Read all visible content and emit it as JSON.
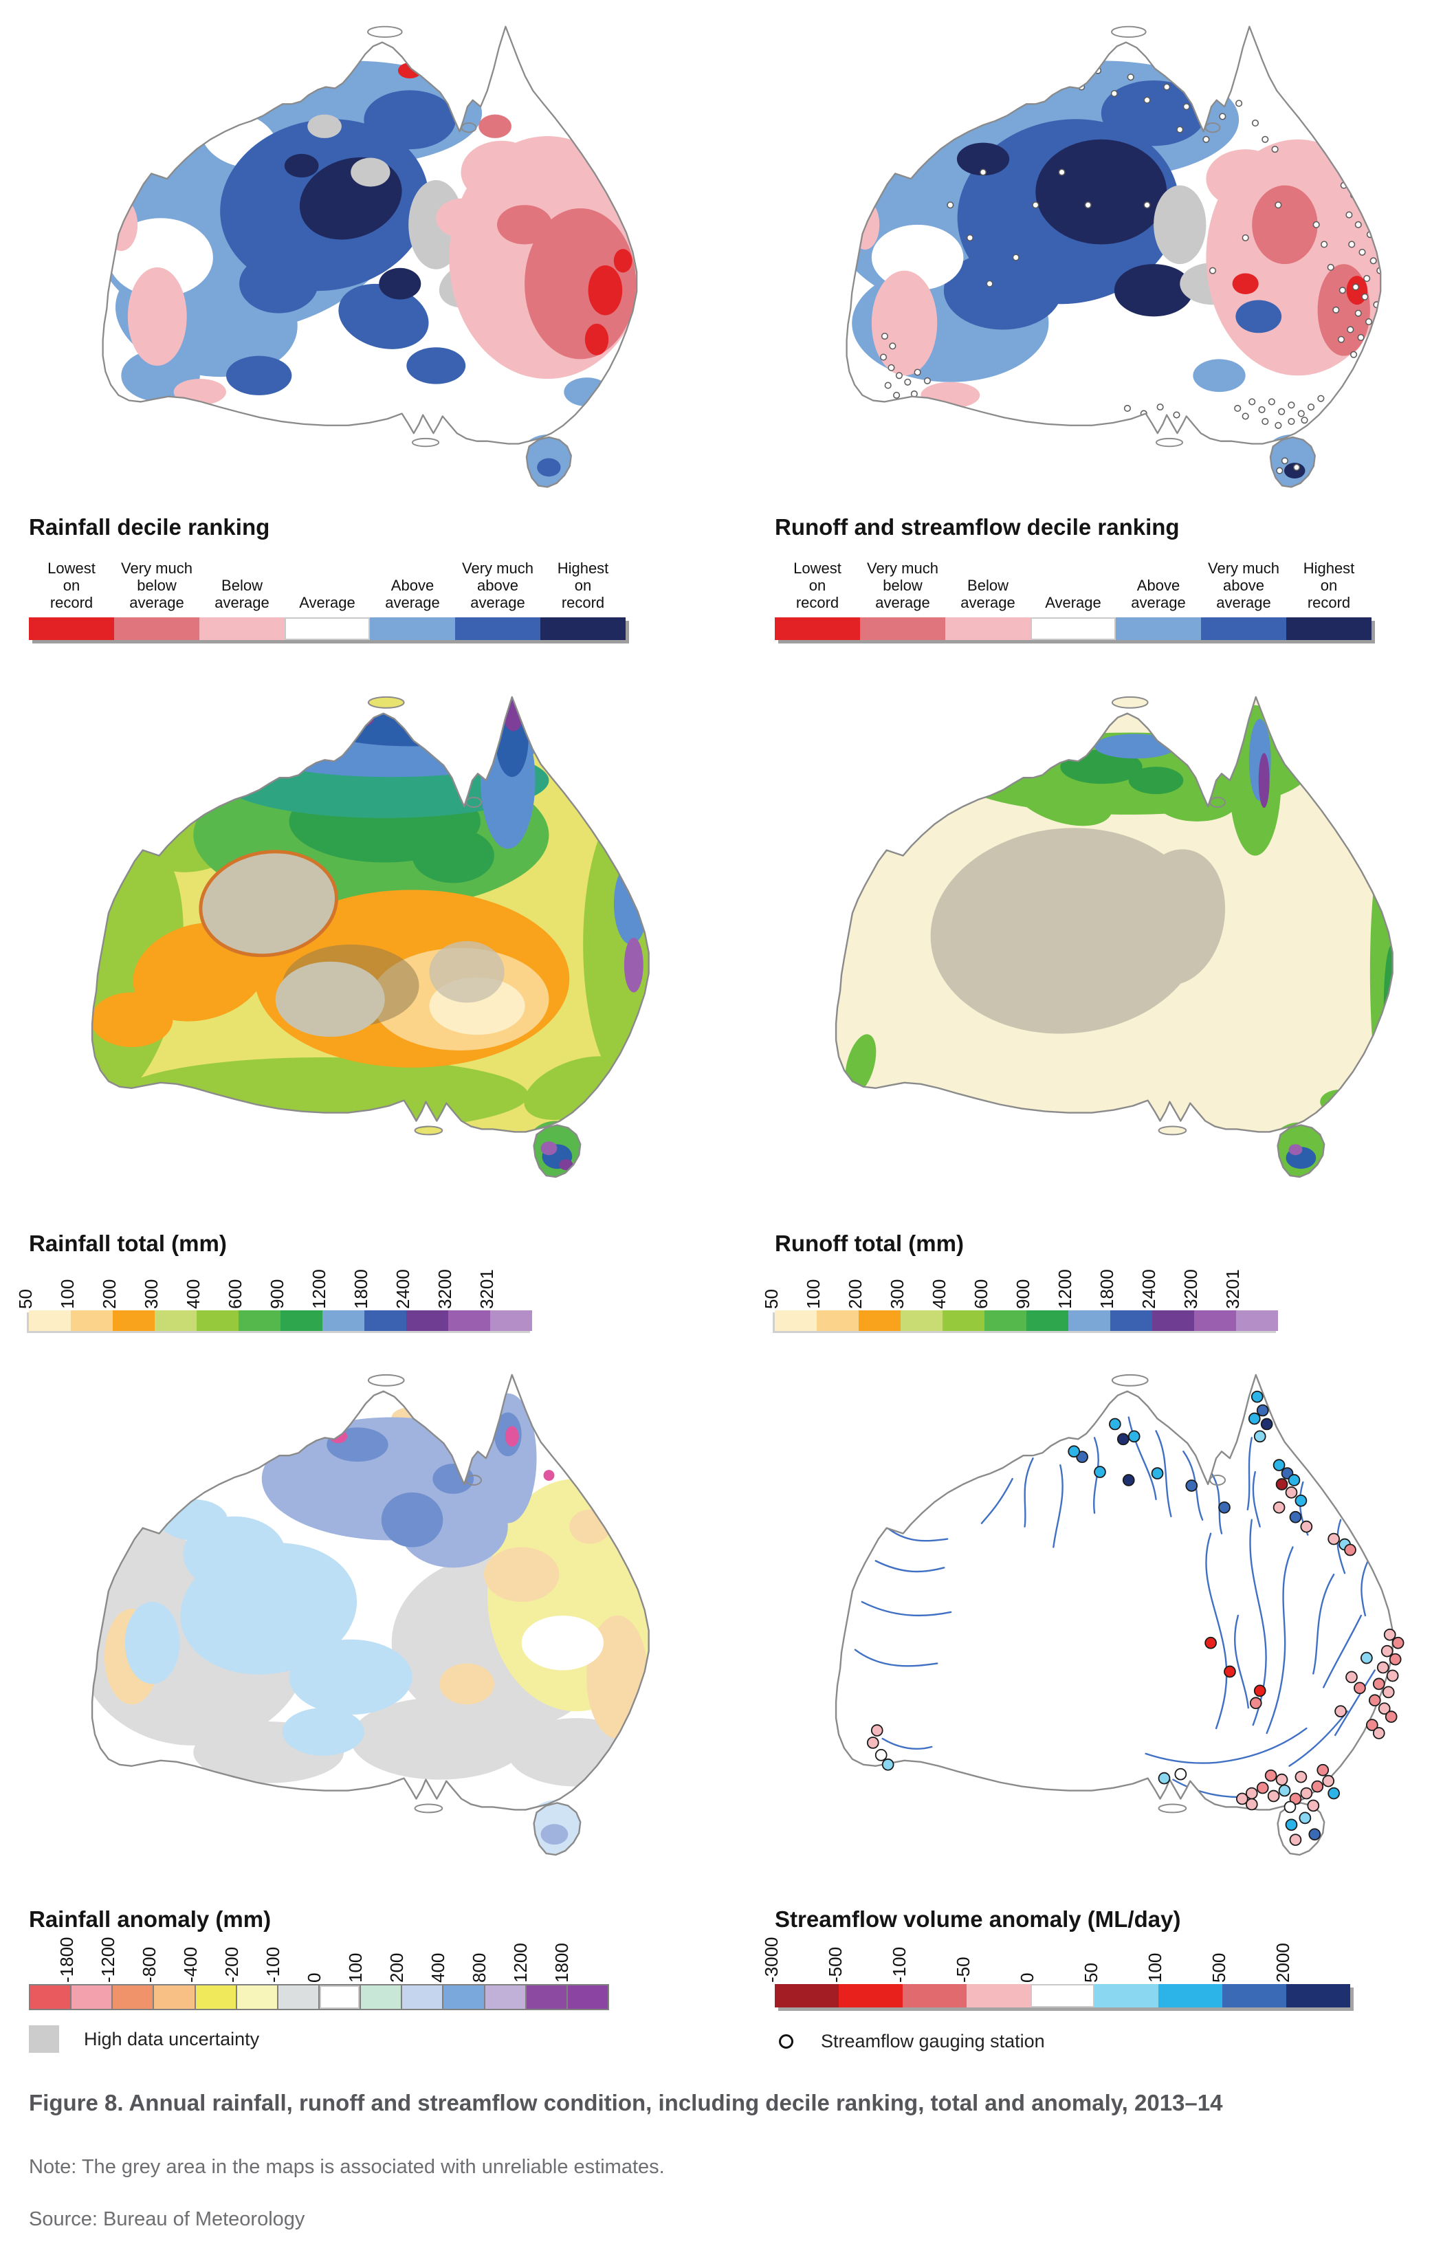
{
  "figure": {
    "caption": "Figure 8. Annual rainfall, runoff and streamflow condition, including decile ranking, total and anomaly, 2013–14",
    "note": "Note: The grey area in the maps is associated with unreliable estimates.",
    "source": "Source: Bureau of Meteorology"
  },
  "panels": [
    {
      "title": "Rainfall decile ranking"
    },
    {
      "title": "Runoff and streamflow decile ranking"
    },
    {
      "title": "Rainfall total (mm)"
    },
    {
      "title": "Runoff total (mm)"
    },
    {
      "title": "Rainfall anomaly (mm)"
    },
    {
      "title": "Streamflow volume anomaly (ML/day)"
    }
  ],
  "legends": {
    "decile": {
      "labels": [
        "Lowest\non\nrecord",
        "Very much\nbelow\naverage",
        "Below\naverage",
        "Average",
        "Above\naverage",
        "Very much\nabove\naverage",
        "Highest\non\nrecord"
      ],
      "colors": [
        "#e32226",
        "#e0757d",
        "#f4bcc0",
        "#ffffff",
        "#7aa6d8",
        "#3a62b0",
        "#20295e"
      ]
    },
    "total": {
      "ticks": [
        "50",
        "100",
        "200",
        "300",
        "400",
        "600",
        "900",
        "1200",
        "1800",
        "2400",
        "3200",
        "3201"
      ],
      "colors": [
        "#fdeec5",
        "#fbd38b",
        "#f9a21b",
        "#c9dc74",
        "#97c93d",
        "#55b84c",
        "#2ea64e",
        "#7ba7d7",
        "#3a62b0",
        "#6f3d91",
        "#9a5fae",
        "#b48ec6"
      ]
    },
    "rainfall_anomaly": {
      "ticks": [
        "-1800",
        "-1200",
        "-800",
        "-400",
        "-200",
        "-100",
        "0",
        "100",
        "200",
        "400",
        "800",
        "1200",
        "1800"
      ],
      "colors": [
        "#e85a5e",
        "#f4a1ae",
        "#f0926a",
        "#f8c084",
        "#f0e95c",
        "#f8f5bb",
        "#dcdfdf",
        "#ffffff",
        "#c9e7d6",
        "#c6d5ee",
        "#7aa8dc",
        "#c1b1d9",
        "#8c4aa0",
        "#8b44a1"
      ],
      "uncertainty_label": "High data uncertainty",
      "uncertainty_color": "#cccccc"
    },
    "streamflow_anomaly": {
      "ticks": [
        "-3000",
        "-500",
        "-100",
        "-50",
        "0",
        "50",
        "100",
        "500",
        "2000"
      ],
      "colors": [
        "#a31e24",
        "#e8211d",
        "#e06a6d",
        "#f4babd",
        "#ffffff",
        "#8ad7f2",
        "#2cb3e8",
        "#3a6ab5",
        "#1f3070"
      ],
      "station_label": "Streamflow gauging station"
    }
  }
}
